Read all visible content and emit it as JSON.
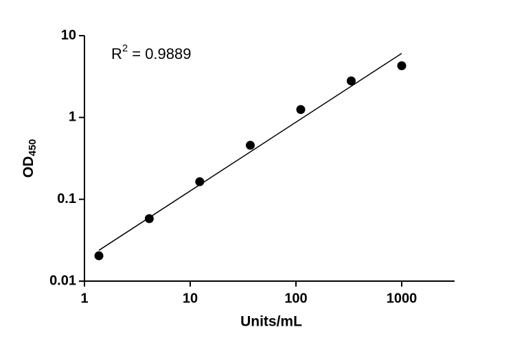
{
  "chart_data": {
    "type": "scatter",
    "x_label": "Units/mL",
    "y_label": {
      "text": "OD",
      "sub": "450"
    },
    "annotation": {
      "base": "R",
      "sup": "2",
      "text": "= 0.9889"
    },
    "x": [
      1.37,
      4.1,
      12.3,
      37,
      111,
      333,
      1000
    ],
    "values": [
      0.0204,
      0.058,
      0.164,
      0.457,
      1.25,
      2.8,
      4.29
    ],
    "color": "#000000",
    "fit_line": {
      "x": [
        1.37,
        1000
      ],
      "values": [
        0.0238,
        6.07
      ]
    },
    "xlim": [
      1,
      3162
    ],
    "ylim": [
      0.01,
      10
    ],
    "xticks": [
      1,
      10,
      100,
      1000
    ],
    "yticks": [
      0.01,
      0.1,
      1,
      10
    ],
    "log_x": true,
    "log_y": true
  }
}
